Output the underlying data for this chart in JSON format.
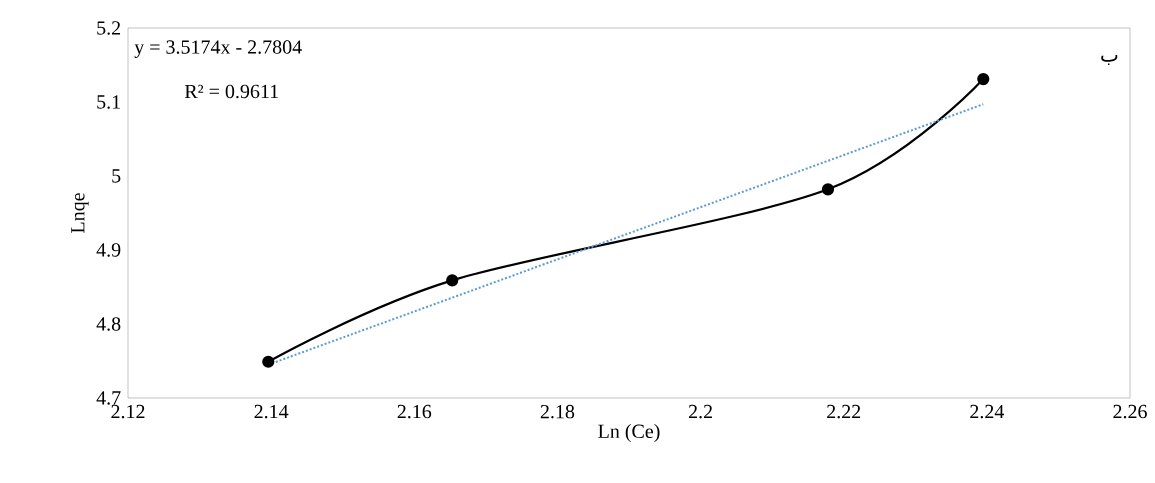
{
  "chart_data": {
    "type": "line",
    "xlabel": "Ln (Ce)",
    "ylabel": "Lnqe",
    "xlim": [
      2.12,
      2.26
    ],
    "xticks": [
      2.12,
      2.14,
      2.16,
      2.18,
      2.2,
      2.22,
      2.24,
      2.26
    ],
    "ylim": [
      4.7,
      5.2
    ],
    "yticks": [
      4.7,
      4.8,
      4.9,
      5,
      5.1,
      5.2
    ],
    "series": [
      {
        "x": [
          2.1396,
          2.1653,
          2.2178,
          2.2395
        ],
        "values": [
          4.749,
          4.859,
          4.982,
          5.131
        ],
        "color": "#000000",
        "marker": "circle",
        "line_style": "solid"
      },
      {
        "type": "line",
        "x": [
          2.1396,
          2.2395
        ],
        "values": [
          4.745,
          5.097
        ],
        "color": "#5b9bd5",
        "marker": "none",
        "line_style": "dotted"
      }
    ],
    "annotations": [
      "y = 3.5174x - 2.7804",
      "R² = 0.9611",
      "ب"
    ]
  }
}
